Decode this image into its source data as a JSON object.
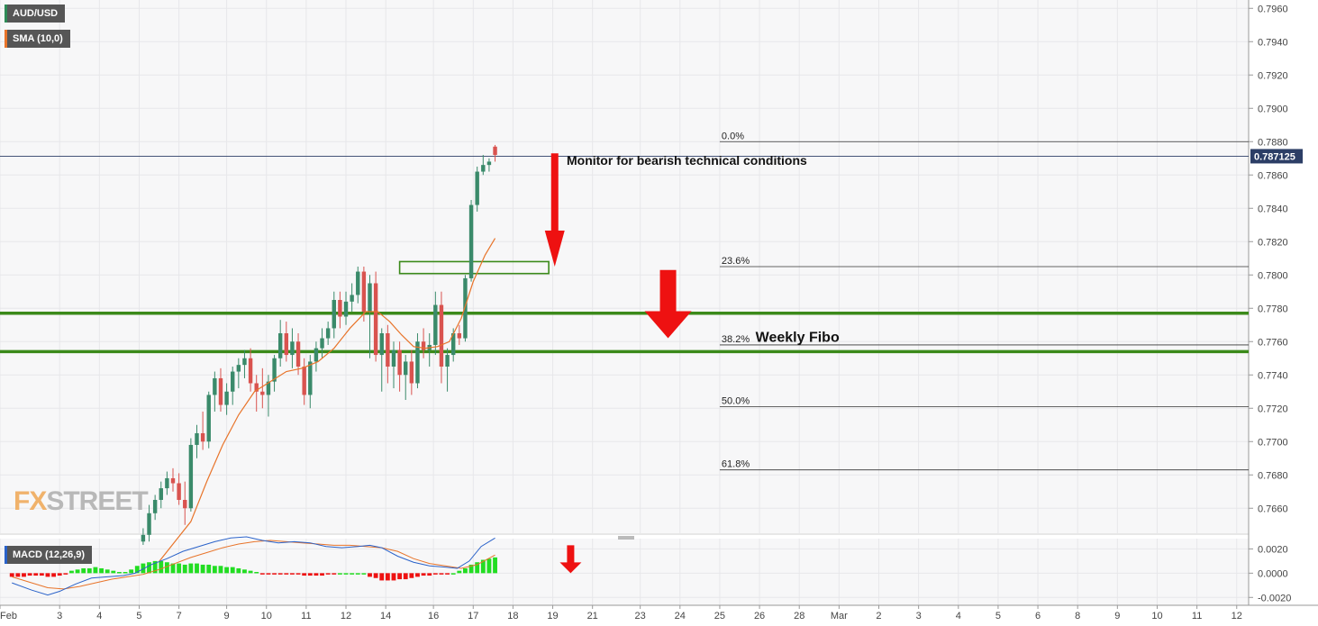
{
  "chart_data": {
    "type": "candlestick",
    "symbol": "AUD/USD",
    "indicator_labels": {
      "sma": "SMA (10,0)",
      "macd": "MACD (12,26,9)"
    },
    "last_price_label": "0.787125",
    "last_price": 0.787125,
    "price_axis": {
      "min": 0.7645,
      "max": 0.7965,
      "ticks": [
        0.766,
        0.768,
        0.77,
        0.772,
        0.774,
        0.776,
        0.778,
        0.78,
        0.782,
        0.784,
        0.786,
        0.788,
        0.79,
        0.792,
        0.794,
        0.796
      ],
      "tick_labels": [
        "0.7660",
        "0.7680",
        "0.7700",
        "0.7720",
        "0.7740",
        "0.7760",
        "0.7780",
        "0.7800",
        "0.7820",
        "0.7840",
        "0.7860",
        "0.7880",
        "0.7900",
        "0.7920",
        "0.7940",
        "0.7960"
      ]
    },
    "macd_axis": {
      "min": -0.0025,
      "max": 0.0027,
      "ticks": [
        -0.002,
        0.0,
        0.002
      ],
      "tick_labels": [
        "-0.0020",
        "0.0000",
        "0.0020"
      ]
    },
    "time_axis": {
      "slot_min": 0,
      "slot_max": 31.4,
      "labels": [
        {
          "label": "Feb",
          "slot": 0
        },
        {
          "label": "3",
          "slot": 1.5
        },
        {
          "label": "4",
          "slot": 2.5
        },
        {
          "label": "5",
          "slot": 3.5
        },
        {
          "label": "7",
          "slot": 4.5
        },
        {
          "label": "9",
          "slot": 5.7
        },
        {
          "label": "10",
          "slot": 6.7
        },
        {
          "label": "11",
          "slot": 7.7
        },
        {
          "label": "12",
          "slot": 8.7
        },
        {
          "label": "14",
          "slot": 9.7
        },
        {
          "label": "16",
          "slot": 10.9
        },
        {
          "label": "17",
          "slot": 11.9
        },
        {
          "label": "18",
          "slot": 12.9
        },
        {
          "label": "19",
          "slot": 13.9
        },
        {
          "label": "21",
          "slot": 14.9
        },
        {
          "label": "23",
          "slot": 16.1
        },
        {
          "label": "24",
          "slot": 17.1
        },
        {
          "label": "25",
          "slot": 18.1
        },
        {
          "label": "26",
          "slot": 19.1
        },
        {
          "label": "28",
          "slot": 20.1
        },
        {
          "label": "Mar",
          "slot": 21.1
        },
        {
          "label": "2",
          "slot": 22.1
        },
        {
          "label": "3",
          "slot": 23.1
        },
        {
          "label": "4",
          "slot": 24.1
        },
        {
          "label": "5",
          "slot": 25.1
        },
        {
          "label": "6",
          "slot": 26.1
        },
        {
          "label": "8",
          "slot": 27.1
        },
        {
          "label": "9",
          "slot": 28.1
        },
        {
          "label": "10",
          "slot": 29.1
        },
        {
          "label": "11",
          "slot": 30.1
        },
        {
          "label": "12",
          "slot": 31.1
        }
      ]
    },
    "candles": [
      [
        3.6,
        0.764,
        0.7648,
        0.7638,
        0.7644
      ],
      [
        3.75,
        0.7644,
        0.7662,
        0.764,
        0.7657
      ],
      [
        3.9,
        0.7657,
        0.7668,
        0.7653,
        0.7665
      ],
      [
        4.05,
        0.7665,
        0.7676,
        0.766,
        0.7672
      ],
      [
        4.2,
        0.7672,
        0.7682,
        0.7668,
        0.7678
      ],
      [
        4.35,
        0.7678,
        0.7684,
        0.767,
        0.7675
      ],
      [
        4.5,
        0.7675,
        0.7681,
        0.7662,
        0.7665
      ],
      [
        4.65,
        0.7665,
        0.7676,
        0.765,
        0.766
      ],
      [
        4.8,
        0.766,
        0.7702,
        0.7658,
        0.7698
      ],
      [
        4.95,
        0.7698,
        0.771,
        0.769,
        0.7705
      ],
      [
        5.1,
        0.7705,
        0.7718,
        0.7695,
        0.77
      ],
      [
        5.25,
        0.77,
        0.773,
        0.7696,
        0.7728
      ],
      [
        5.4,
        0.7728,
        0.7742,
        0.7718,
        0.7738
      ],
      [
        5.55,
        0.7738,
        0.7744,
        0.7718,
        0.7722
      ],
      [
        5.7,
        0.7722,
        0.7735,
        0.7716,
        0.773
      ],
      [
        5.85,
        0.773,
        0.7745,
        0.7722,
        0.7742
      ],
      [
        6.0,
        0.7742,
        0.775,
        0.7732,
        0.7746
      ],
      [
        6.15,
        0.7746,
        0.7755,
        0.7738,
        0.775
      ],
      [
        6.3,
        0.775,
        0.7756,
        0.773,
        0.7735
      ],
      [
        6.45,
        0.7735,
        0.774,
        0.7718,
        0.773
      ],
      [
        6.6,
        0.773,
        0.7744,
        0.772,
        0.7728
      ],
      [
        6.75,
        0.7728,
        0.774,
        0.7715,
        0.7736
      ],
      [
        6.9,
        0.7736,
        0.7752,
        0.773,
        0.775
      ],
      [
        7.05,
        0.775,
        0.7773,
        0.7745,
        0.7765
      ],
      [
        7.2,
        0.7765,
        0.7772,
        0.7748,
        0.7752
      ],
      [
        7.35,
        0.7752,
        0.7768,
        0.7744,
        0.776
      ],
      [
        7.5,
        0.776,
        0.7765,
        0.774,
        0.7745
      ],
      [
        7.65,
        0.7745,
        0.775,
        0.7722,
        0.7728
      ],
      [
        7.8,
        0.7728,
        0.7752,
        0.772,
        0.7748
      ],
      [
        7.95,
        0.7748,
        0.776,
        0.7742,
        0.7756
      ],
      [
        8.1,
        0.7756,
        0.7768,
        0.775,
        0.7762
      ],
      [
        8.25,
        0.7762,
        0.7772,
        0.7758,
        0.7768
      ],
      [
        8.4,
        0.7768,
        0.779,
        0.7762,
        0.7785
      ],
      [
        8.55,
        0.7785,
        0.779,
        0.7768,
        0.7775
      ],
      [
        8.7,
        0.7775,
        0.779,
        0.777,
        0.7784
      ],
      [
        8.85,
        0.7784,
        0.7795,
        0.7778,
        0.7788
      ],
      [
        9.0,
        0.7788,
        0.7805,
        0.7783,
        0.7802
      ],
      [
        9.15,
        0.7802,
        0.7805,
        0.7772,
        0.7778
      ],
      [
        9.3,
        0.7778,
        0.78,
        0.775,
        0.7795
      ],
      [
        9.45,
        0.7795,
        0.7802,
        0.7748,
        0.7752
      ],
      [
        9.6,
        0.7752,
        0.7768,
        0.773,
        0.7765
      ],
      [
        9.75,
        0.7765,
        0.777,
        0.7735,
        0.7745
      ],
      [
        9.9,
        0.7745,
        0.776,
        0.7732,
        0.7755
      ],
      [
        10.05,
        0.7755,
        0.776,
        0.773,
        0.774
      ],
      [
        10.2,
        0.774,
        0.7752,
        0.7725,
        0.7748
      ],
      [
        10.35,
        0.7748,
        0.7755,
        0.7728,
        0.7735
      ],
      [
        10.5,
        0.7735,
        0.7765,
        0.7732,
        0.776
      ],
      [
        10.65,
        0.776,
        0.7768,
        0.775,
        0.7755
      ],
      [
        10.8,
        0.7755,
        0.7765,
        0.7745,
        0.7758
      ],
      [
        10.95,
        0.7758,
        0.779,
        0.7752,
        0.7782
      ],
      [
        11.1,
        0.7782,
        0.779,
        0.7735,
        0.7745
      ],
      [
        11.25,
        0.7745,
        0.7756,
        0.773,
        0.7752
      ],
      [
        11.4,
        0.7752,
        0.7768,
        0.7748,
        0.7765
      ],
      [
        11.55,
        0.7765,
        0.777,
        0.7758,
        0.7762
      ],
      [
        11.7,
        0.7762,
        0.78,
        0.776,
        0.7798
      ],
      [
        11.85,
        0.7798,
        0.7845,
        0.7796,
        0.7842
      ],
      [
        12.0,
        0.7842,
        0.7865,
        0.7838,
        0.7862
      ],
      [
        12.15,
        0.7862,
        0.7872,
        0.786,
        0.7866
      ],
      [
        12.3,
        0.7866,
        0.787,
        0.7862,
        0.7868
      ],
      [
        12.45,
        0.7877,
        0.7878,
        0.7868,
        0.7872
      ]
    ],
    "sma": [
      [
        4.0,
        0.7628
      ],
      [
        4.4,
        0.764
      ],
      [
        4.8,
        0.7652
      ],
      [
        5.2,
        0.7676
      ],
      [
        5.6,
        0.7698
      ],
      [
        6.0,
        0.7716
      ],
      [
        6.4,
        0.773
      ],
      [
        6.8,
        0.7736
      ],
      [
        7.2,
        0.7742
      ],
      [
        7.6,
        0.7744
      ],
      [
        8.0,
        0.7748
      ],
      [
        8.4,
        0.7756
      ],
      [
        8.8,
        0.7768
      ],
      [
        9.2,
        0.7778
      ],
      [
        9.5,
        0.7778
      ],
      [
        9.8,
        0.7772
      ],
      [
        10.1,
        0.7764
      ],
      [
        10.4,
        0.7757
      ],
      [
        10.7,
        0.7756
      ],
      [
        11.0,
        0.7757
      ],
      [
        11.3,
        0.776
      ],
      [
        11.6,
        0.7774
      ],
      [
        11.9,
        0.7796
      ],
      [
        12.2,
        0.7812
      ],
      [
        12.45,
        0.7822
      ]
    ],
    "macd_hist": [
      [
        0.3,
        -0.0003
      ],
      [
        0.45,
        -0.0003
      ],
      [
        0.6,
        -0.0003
      ],
      [
        0.75,
        -0.0002
      ],
      [
        0.9,
        -0.0002
      ],
      [
        1.05,
        -0.0002
      ],
      [
        1.2,
        -0.0003
      ],
      [
        1.35,
        -0.0003
      ],
      [
        1.5,
        -0.0002
      ],
      [
        1.65,
        -0.0001
      ],
      [
        1.8,
        0.0002
      ],
      [
        1.95,
        0.0003
      ],
      [
        2.1,
        0.0004
      ],
      [
        2.25,
        0.0004
      ],
      [
        2.4,
        0.0005
      ],
      [
        2.55,
        0.0004
      ],
      [
        2.7,
        0.0003
      ],
      [
        2.85,
        0.0002
      ],
      [
        3.0,
        0.0001
      ],
      [
        3.15,
        0.0001
      ],
      [
        3.3,
        0.0003
      ],
      [
        3.45,
        0.0006
      ],
      [
        3.6,
        0.0008
      ],
      [
        3.75,
        0.0009
      ],
      [
        3.9,
        0.001
      ],
      [
        4.05,
        0.001
      ],
      [
        4.2,
        0.0009
      ],
      [
        4.35,
        0.0008
      ],
      [
        4.5,
        0.0008
      ],
      [
        4.65,
        0.0007
      ],
      [
        4.8,
        0.0008
      ],
      [
        4.95,
        0.0008
      ],
      [
        5.1,
        0.0007
      ],
      [
        5.25,
        0.0007
      ],
      [
        5.4,
        0.0006
      ],
      [
        5.55,
        0.0006
      ],
      [
        5.7,
        0.0005
      ],
      [
        5.85,
        0.0005
      ],
      [
        6.0,
        0.0004
      ],
      [
        6.15,
        0.0003
      ],
      [
        6.3,
        0.0002
      ],
      [
        6.45,
        0.0001
      ],
      [
        6.6,
        -0.0001
      ],
      [
        6.75,
        -0.0001
      ],
      [
        6.9,
        -0.0001
      ],
      [
        7.05,
        -0.0001
      ],
      [
        7.2,
        -0.0001
      ],
      [
        7.35,
        -0.0001
      ],
      [
        7.5,
        -0.0001
      ],
      [
        7.65,
        -0.0002
      ],
      [
        7.8,
        -0.0002
      ],
      [
        7.95,
        -0.0002
      ],
      [
        8.1,
        -0.0002
      ],
      [
        8.25,
        -0.0001
      ],
      [
        8.4,
        -0.0001
      ],
      [
        8.55,
        0.0
      ],
      [
        8.7,
        0.0
      ],
      [
        8.85,
        0.0
      ],
      [
        9.0,
        0.0
      ],
      [
        9.15,
        0.0
      ],
      [
        9.3,
        -0.0003
      ],
      [
        9.45,
        -0.0004
      ],
      [
        9.6,
        -0.0006
      ],
      [
        9.75,
        -0.0006
      ],
      [
        9.9,
        -0.0006
      ],
      [
        10.05,
        -0.0005
      ],
      [
        10.2,
        -0.0005
      ],
      [
        10.35,
        -0.0004
      ],
      [
        10.5,
        -0.0003
      ],
      [
        10.65,
        -0.0002
      ],
      [
        10.8,
        -0.0002
      ],
      [
        10.95,
        -0.0001
      ],
      [
        11.1,
        -0.0001
      ],
      [
        11.25,
        -0.0001
      ],
      [
        11.4,
        0.0
      ],
      [
        11.55,
        0.0002
      ],
      [
        11.7,
        0.0004
      ],
      [
        11.85,
        0.0007
      ],
      [
        12.0,
        0.0009
      ],
      [
        12.15,
        0.0011
      ],
      [
        12.3,
        0.0012
      ],
      [
        12.45,
        0.0013
      ]
    ],
    "macd_line": [
      [
        0.3,
        -0.0008
      ],
      [
        0.8,
        -0.0014
      ],
      [
        1.2,
        -0.0018
      ],
      [
        1.5,
        -0.0015
      ],
      [
        1.9,
        -0.0009
      ],
      [
        2.3,
        -0.0004
      ],
      [
        2.7,
        -0.0003
      ],
      [
        3.1,
        -0.0002
      ],
      [
        3.4,
        0.0
      ],
      [
        3.8,
        0.0007
      ],
      [
        4.2,
        0.0012
      ],
      [
        4.6,
        0.0018
      ],
      [
        5.0,
        0.0022
      ],
      [
        5.4,
        0.0026
      ],
      [
        5.8,
        0.0029
      ],
      [
        6.2,
        0.003
      ],
      [
        6.6,
        0.0027
      ],
      [
        7.0,
        0.0025
      ],
      [
        7.4,
        0.0026
      ],
      [
        7.8,
        0.0025
      ],
      [
        8.2,
        0.0022
      ],
      [
        8.6,
        0.0021
      ],
      [
        9.0,
        0.0022
      ],
      [
        9.3,
        0.0023
      ],
      [
        9.6,
        0.0021
      ],
      [
        10.0,
        0.0014
      ],
      [
        10.4,
        0.0009
      ],
      [
        10.8,
        0.0006
      ],
      [
        11.2,
        0.0005
      ],
      [
        11.5,
        0.0004
      ],
      [
        11.8,
        0.001
      ],
      [
        12.1,
        0.0022
      ],
      [
        12.45,
        0.0029
      ]
    ],
    "macd_signal": [
      [
        0.3,
        -0.0003
      ],
      [
        0.8,
        -0.0008
      ],
      [
        1.2,
        -0.0012
      ],
      [
        1.6,
        -0.0013
      ],
      [
        2.0,
        -0.0011
      ],
      [
        2.4,
        -0.0008
      ],
      [
        2.8,
        -0.0005
      ],
      [
        3.2,
        -0.0003
      ],
      [
        3.6,
        -0.0001
      ],
      [
        4.0,
        0.0003
      ],
      [
        4.4,
        0.0008
      ],
      [
        4.8,
        0.0013
      ],
      [
        5.2,
        0.0017
      ],
      [
        5.6,
        0.0021
      ],
      [
        6.0,
        0.0024
      ],
      [
        6.4,
        0.0026
      ],
      [
        6.8,
        0.0027
      ],
      [
        7.2,
        0.0026
      ],
      [
        7.6,
        0.0025
      ],
      [
        8.0,
        0.0024
      ],
      [
        8.4,
        0.0023
      ],
      [
        8.8,
        0.0023
      ],
      [
        9.2,
        0.0022
      ],
      [
        9.6,
        0.0021
      ],
      [
        10.0,
        0.0018
      ],
      [
        10.4,
        0.0012
      ],
      [
        10.8,
        0.0008
      ],
      [
        11.2,
        0.0006
      ],
      [
        11.6,
        0.0004
      ],
      [
        12.0,
        0.0007
      ],
      [
        12.45,
        0.0015
      ]
    ],
    "fibonacci": [
      {
        "label": "0.0%",
        "price": 0.788
      },
      {
        "label": "23.6%",
        "price": 0.7805
      },
      {
        "label": "38.2%",
        "price": 0.7758
      },
      {
        "label": "50.0%",
        "price": 0.7721
      },
      {
        "label": "61.8%",
        "price": 0.7683
      }
    ],
    "fib_slot_start": 18.1,
    "support_zone": {
      "upper": 0.7777,
      "lower": 0.7754
    },
    "resistance_box": {
      "slot_from": 10.05,
      "slot_to": 13.8,
      "top": 0.7808,
      "bottom": 0.7803
    },
    "annotations": [
      {
        "text": "Monitor for bearish technical conditions",
        "slot": 14.25,
        "price": 0.7866
      },
      {
        "text": "Weekly Fibo",
        "slot": 19.0,
        "price": 0.776
      }
    ],
    "colors": {
      "bull": "#3a8a6a",
      "bear": "#d9534f",
      "sma": "#e8742a",
      "macd": "#2a62c9",
      "signal": "#e8742a",
      "hist_pos": "#22dd22",
      "hist_neg": "#ee1111",
      "zone": "#3b8a1a",
      "arrow": "#ee1111",
      "last": "#2c3e66"
    }
  },
  "watermark": {
    "brand_prefix": "FX",
    "brand_suffix": "STREET"
  }
}
